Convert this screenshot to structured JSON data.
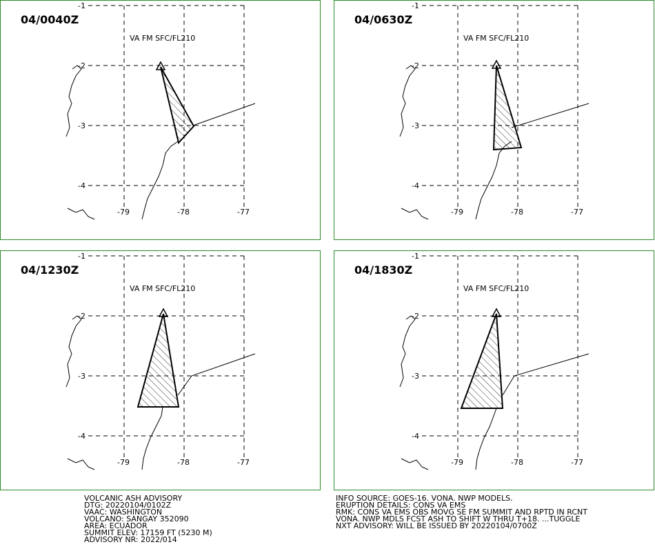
{
  "panels": [
    {
      "time": "04/0040Z",
      "label": "VA FM SFC/FL210",
      "lat_labels": [
        "-1",
        "-2",
        "-3",
        "-4"
      ],
      "lon_labels": [
        "-79",
        "-78",
        "-77"
      ]
    },
    {
      "time": "04/0630Z",
      "label": "VA FM SFC/FL210",
      "lat_labels": [
        "-1",
        "-2",
        "-3",
        "-4"
      ],
      "lon_labels": [
        "-79",
        "-78",
        "-77"
      ]
    },
    {
      "time": "04/1230Z",
      "label": "VA FM SFC/FL210",
      "lat_labels": [
        "-1",
        "-2",
        "-3",
        "-4"
      ],
      "lon_labels": [
        "-79",
        "-78",
        "-77"
      ]
    },
    {
      "time": "04/1830Z",
      "label": "VA FM SFC/FL210",
      "lat_labels": [
        "-1",
        "-2",
        "-3",
        "-4"
      ],
      "lon_labels": [
        "-79",
        "-78",
        "-77"
      ]
    }
  ],
  "advisory": {
    "left": [
      "VOLCANIC ASH ADVISORY",
      "DTG: 20220104/0102Z",
      "VAAC: WASHINGTON",
      "VOLCANO: SANGAY 352090",
      "AREA: ECUADOR",
      "SUMMIT ELEV: 17159 FT (5230 M)",
      "ADVISORY NR: 2022/014"
    ],
    "right": [
      "INFO SOURCE: GOES-16. VONA. NWP MODELS.",
      "ERUPTION DETAILS: CONS VA EMS",
      "RMK: CONS VA EMS OBS MOVG SE FM SUMMIT AND RPTD IN RCNT",
      "VONA. NWP MDLS FCST ASH TO SHIFT W THRU T+18. ...TUGGLE",
      "NXT ADVISORY: WILL BE ISSUED BY 20220104/0700Z"
    ]
  }
}
